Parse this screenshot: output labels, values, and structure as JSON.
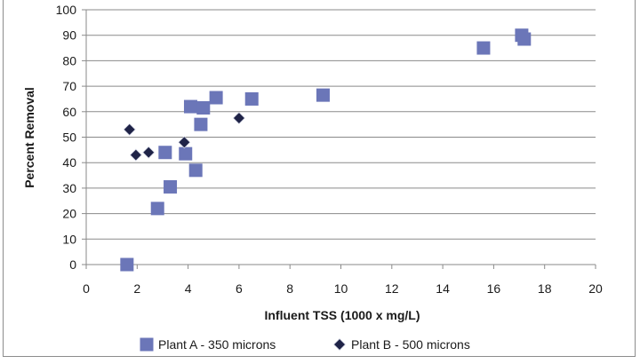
{
  "chart_data": {
    "type": "scatter",
    "title": "",
    "xlabel": "Influent TSS (1000 x mg/L)",
    "ylabel": "Percent Removal",
    "xlim": [
      0,
      20
    ],
    "ylim": [
      0,
      100
    ],
    "xticks": [
      "0",
      "2",
      "4",
      "6",
      "8",
      "10",
      "12",
      "14",
      "16",
      "18",
      "20"
    ],
    "yticks": [
      "0",
      "10",
      "20",
      "30",
      "40",
      "50",
      "60",
      "70",
      "80",
      "90",
      "100"
    ],
    "grid": "horizontal",
    "legend_position": "bottom",
    "series": [
      {
        "name": "Plant A - 350 microns",
        "marker": "square",
        "color": "#6b76b8",
        "points": [
          [
            1.6,
            0
          ],
          [
            2.8,
            22
          ],
          [
            3.3,
            30.5
          ],
          [
            3.1,
            44
          ],
          [
            3.9,
            43.5
          ],
          [
            4.3,
            37
          ],
          [
            4.5,
            55
          ],
          [
            4.1,
            62
          ],
          [
            4.6,
            61.5
          ],
          [
            5.1,
            65.5
          ],
          [
            6.5,
            65
          ],
          [
            9.3,
            66.5
          ],
          [
            15.6,
            85
          ],
          [
            17.1,
            90
          ],
          [
            17.2,
            88.5
          ]
        ]
      },
      {
        "name": "Plant B - 500 microns",
        "marker": "diamond",
        "color": "#1f2347",
        "points": [
          [
            1.7,
            53
          ],
          [
            1.95,
            43
          ],
          [
            2.45,
            44
          ],
          [
            3.85,
            48
          ],
          [
            6.0,
            57.5
          ]
        ]
      }
    ]
  }
}
